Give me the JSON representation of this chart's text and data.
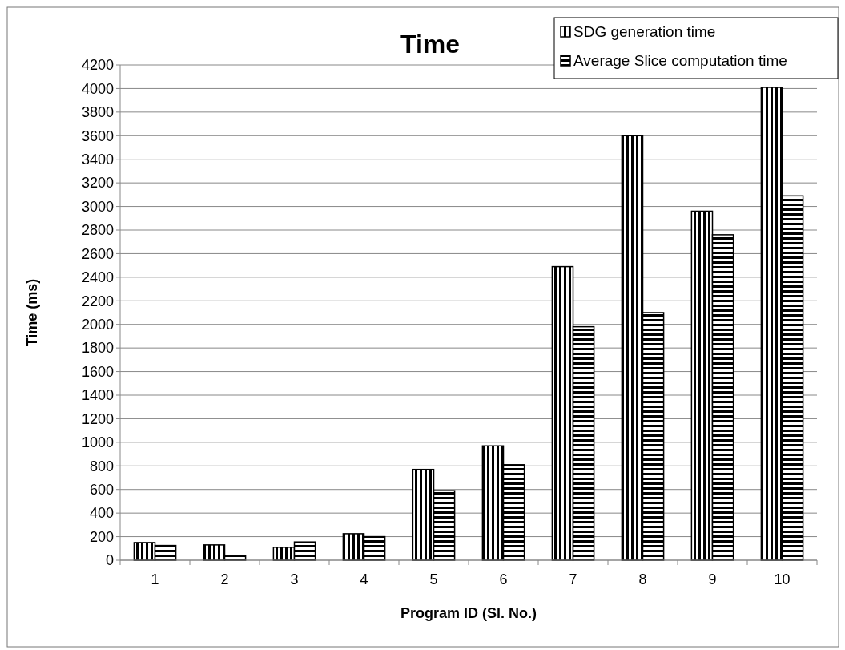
{
  "chart_data": {
    "type": "bar",
    "title": "Time",
    "xlabel": "Program ID (Sl. No.)",
    "ylabel": "Time (ms)",
    "categories": [
      "1",
      "2",
      "3",
      "4",
      "5",
      "6",
      "7",
      "8",
      "9",
      "10"
    ],
    "series": [
      {
        "name": "SDG generation time",
        "color": "#000000",
        "values": [
          150,
          130,
          110,
          225,
          770,
          970,
          2490,
          3600,
          2960,
          4010
        ]
      },
      {
        "name": "Average Slice computation time",
        "color": "#000000",
        "values": [
          125,
          40,
          155,
          200,
          590,
          810,
          1980,
          2100,
          2760,
          3090
        ]
      }
    ],
    "ylim": [
      0,
      4200
    ],
    "yticks": [
      0,
      200,
      400,
      600,
      800,
      1000,
      1200,
      1400,
      1600,
      1800,
      2000,
      2200,
      2400,
      2600,
      2800,
      3000,
      3200,
      3400,
      3600,
      3800,
      4000,
      4200
    ],
    "grid": "y",
    "legend": "top right"
  }
}
